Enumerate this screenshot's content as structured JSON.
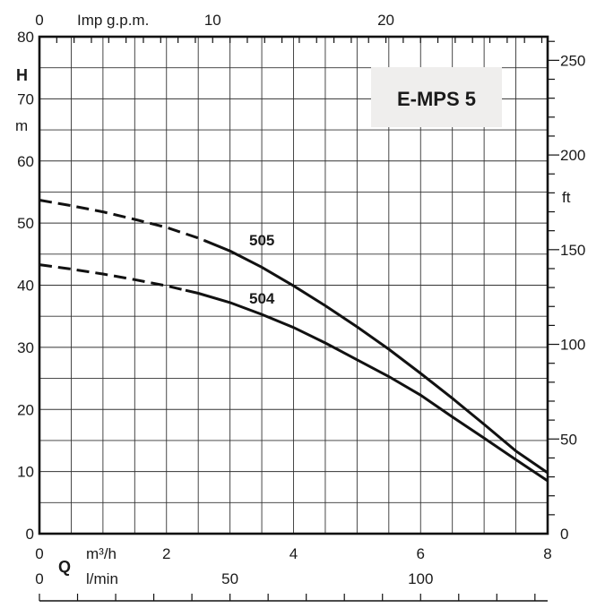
{
  "chart_data": {
    "type": "line",
    "title": "E-MPS 5",
    "x": {
      "unit": "m³/h",
      "range": [
        0,
        8
      ],
      "ticks": [
        0,
        2,
        4,
        6,
        8
      ]
    },
    "x_secondary_lmin": {
      "unit": "l/min",
      "ticks": [
        0,
        50,
        100
      ]
    },
    "x_top_imp_gpm": {
      "unit": "Imp g.p.m.",
      "ticks": [
        0,
        10,
        20
      ]
    },
    "y": {
      "label": "H",
      "unit": "m",
      "range": [
        0,
        80
      ],
      "ticks": [
        0,
        10,
        20,
        30,
        40,
        50,
        60,
        70,
        80
      ]
    },
    "y_right_ft": {
      "unit": "ft",
      "ticks": [
        0,
        50,
        100,
        150,
        200,
        250
      ]
    },
    "x_axis_symbol": "Q",
    "grid": true,
    "series": [
      {
        "name": "505",
        "points": [
          [
            0,
            53.7
          ],
          [
            0.5,
            52.8
          ],
          [
            1,
            51.8
          ],
          [
            1.5,
            50.6
          ],
          [
            2,
            49.3
          ],
          [
            2.5,
            47.6
          ],
          [
            3,
            45.5
          ],
          [
            3.5,
            42.9
          ],
          [
            4,
            39.9
          ],
          [
            4.5,
            36.7
          ],
          [
            5,
            33.3
          ],
          [
            5.5,
            29.7
          ],
          [
            6,
            25.8
          ],
          [
            6.5,
            21.8
          ],
          [
            7,
            17.6
          ],
          [
            7.5,
            13.3
          ],
          [
            8,
            9.8
          ]
        ],
        "dashed_until": 2.6
      },
      {
        "name": "504",
        "points": [
          [
            0,
            43.3
          ],
          [
            0.5,
            42.6
          ],
          [
            1,
            41.8
          ],
          [
            1.5,
            40.9
          ],
          [
            2,
            39.9
          ],
          [
            2.5,
            38.7
          ],
          [
            3,
            37.2
          ],
          [
            3.5,
            35.3
          ],
          [
            4,
            33.2
          ],
          [
            4.5,
            30.7
          ],
          [
            5,
            28.0
          ],
          [
            5.5,
            25.3
          ],
          [
            6,
            22.3
          ],
          [
            6.5,
            18.8
          ],
          [
            7,
            15.4
          ],
          [
            7.5,
            11.9
          ],
          [
            8,
            8.5
          ]
        ],
        "dashed_until": 2.3
      }
    ]
  }
}
